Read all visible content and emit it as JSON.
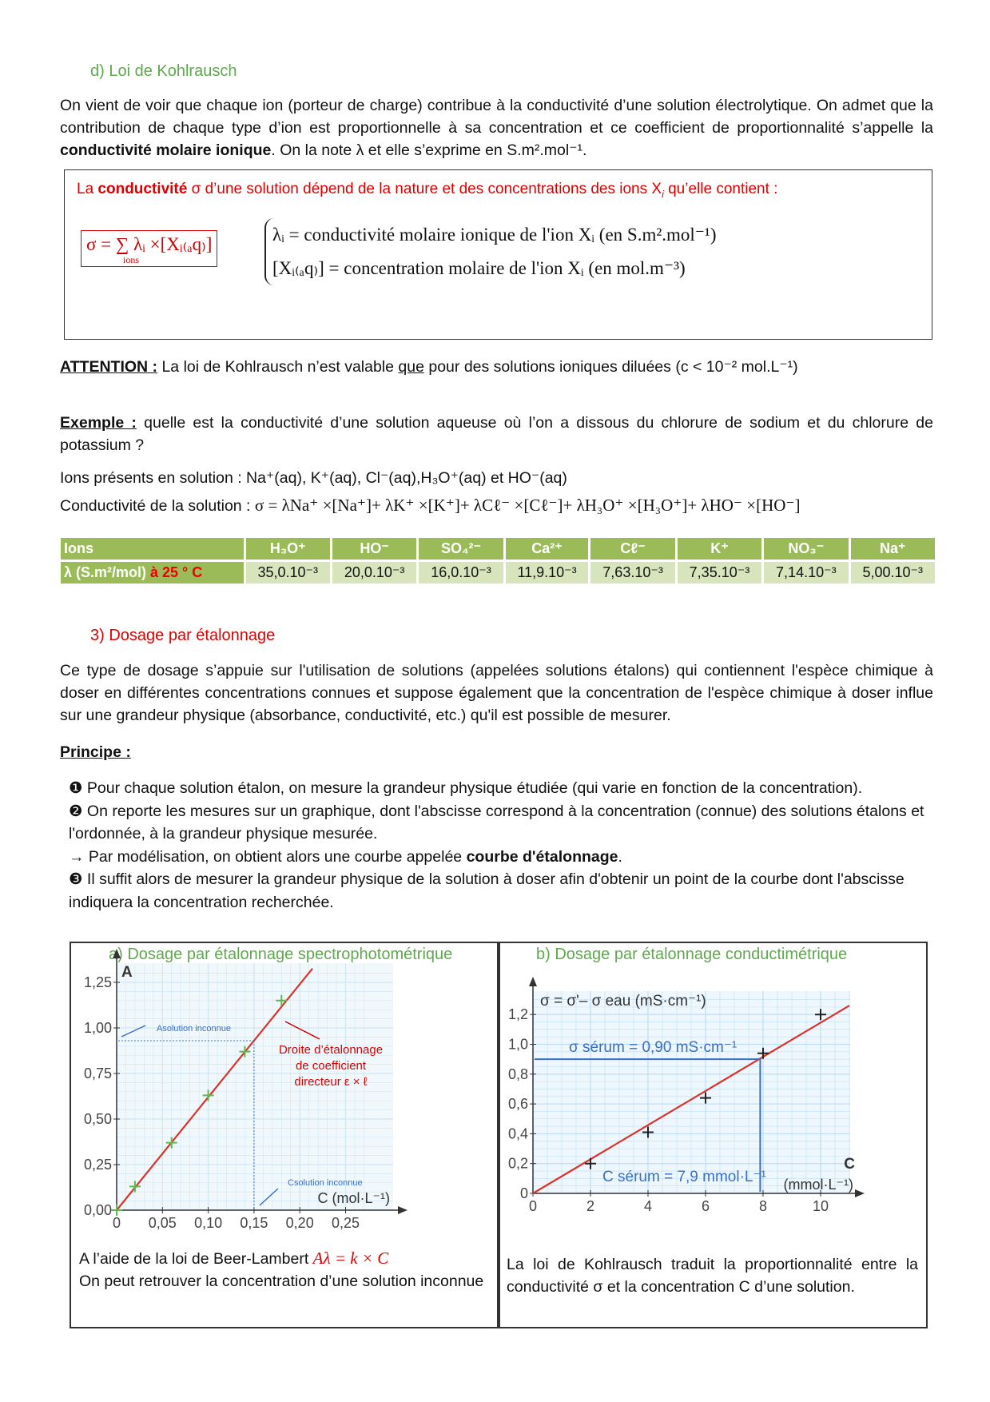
{
  "section_d": {
    "title": "d)   Loi de Kohlrausch",
    "intro_1": "On vient de voir que chaque ion (porteur de charge) contribue à la conductivité d’une solution électrolytique. On admet que la contribution de chaque type d’ion est proportionnelle à sa concentration et ce coefficient de proportionnalité s’appelle la ",
    "intro_bold": "conductivité molaire ionique",
    "intro_2": ". On la note λ et elle s’exprime en S.m².mol⁻¹."
  },
  "law_box": {
    "text_1": "La ",
    "text_bold": "conductivité",
    "text_2": " σ d’une solution dépend de la nature et des concentrations des ions X",
    "text_i": "i",
    "text_3": " qu’elle contient :",
    "formula": "σ = ∑ λᵢ ×[Xᵢ₍ₐq₎]",
    "formula_sub": "ions",
    "def_1": "λᵢ = conductivité molaire ionique de l'ion Xᵢ  (en S.m².mol⁻¹)",
    "def_2": "[Xᵢ₍ₐq₎] = concentration molaire de l'ion Xᵢ  (en mol.m⁻³)"
  },
  "attention": {
    "label": "ATTENTION :",
    "text_1": " La loi de Kohlrausch n’est valable ",
    "text_que": "que",
    "text_2": " pour des solutions ioniques diluées (c < 10⁻² mol.L⁻¹)"
  },
  "exemple": {
    "label": "Exemple :",
    "text": " quelle est la conductivité d’une solution aqueuse où l’on a dissous du chlorure de sodium et du chlorure de potassium ?",
    "ions": "Ions présents en solution : Na⁺(aq), K⁺(aq), Cl⁻(aq),H₃O⁺(aq) et HO⁻(aq)",
    "conductivity_label": "Conductivité de la solution : ",
    "conductivity_formula": "σ = λNa⁺ ×[Na⁺]+ λK⁺ ×[K⁺]+ λCℓ⁻ ×[Cℓ⁻]+ λH₃O⁺ ×[H₃O⁺]+ λHO⁻ ×[HO⁻]"
  },
  "ion_table": {
    "header": [
      "Ions",
      "H₃O⁺",
      "HO⁻",
      "SO₄²⁻",
      "Ca²⁺",
      "Cℓ⁻",
      "K⁺",
      "NO₃⁻",
      "Na⁺"
    ],
    "row_label": "λ (S.m²/mol) ",
    "row_label_red": "à 25 ° C",
    "values": [
      "35,0.10⁻³",
      "20,0.10⁻³",
      "16,0.10⁻³",
      "11,9.10⁻³",
      "7,63.10⁻³",
      "7,35.10⁻³",
      "7,14.10⁻³",
      "5,00.10⁻³"
    ],
    "colors": {
      "header": "#9bbb59",
      "row": "#d7e4bc"
    }
  },
  "section_3": {
    "title": "3)   Dosage par étalonnage",
    "intro": "Ce type de dosage s’appuie sur l'utilisation de solutions (appelées solutions étalons) qui contiennent l'espèce chimique à doser en différentes concentrations connues et suppose également que la concentration de l'espèce chimique à doser influe sur une grandeur physique (absorbance, conductivité, etc.) qu'il est possible de mesurer.",
    "principe_label": "Principe :",
    "step_1": "❶ Pour chaque solution étalon, on mesure la grandeur physique étudiée (qui varie en fonction de la concentration).",
    "step_2": "❷ On reporte les mesures sur un graphique, dont l'abscisse correspond à la concentration (connue) des solutions étalons et l'ordonnée, à la grandeur physique mesurée.",
    "arrow_1": "→ Par modélisation, on obtient alors une courbe appelée ",
    "arrow_bold": "courbe d'étalonnage",
    "arrow_2": ".",
    "step_3": "❸ Il suffit alors de mesurer la grandeur physique de la solution à doser afin d'obtenir un point de la courbe dont l'abscisse indiquera la concentration recherchée."
  },
  "panel_a": {
    "title": "a)   Dosage par étalonnage spectrophotométrique",
    "caption_1": "A l’aide de la loi de Beer-Lambert ",
    "caption_formula": "Aλ =  k × C",
    "caption_2": "On peut retrouver la concentration d’une solution inconnue"
  },
  "panel_b": {
    "title": "b)   Dosage par étalonnage conductimétrique",
    "caption": "La loi de Kohlrausch traduit la proportionnalité entre la conductivité σ et la concentration C d’une solution."
  },
  "chart_data": [
    {
      "type": "scatter",
      "ylabel": "A",
      "xlabel": "C (mol·L⁻¹)",
      "x_ticks": [
        "0",
        "0,05",
        "0,10",
        "0,15",
        "0,20",
        "0,25"
      ],
      "y_ticks": [
        "0,00",
        "0,25",
        "0,50",
        "0,75",
        "1,00",
        "1,25"
      ],
      "xlim": [
        0,
        0.27
      ],
      "ylim": [
        0,
        1.3
      ],
      "grid": true,
      "points": [
        [
          0,
          0
        ],
        [
          0.02,
          0.13
        ],
        [
          0.06,
          0.37
        ],
        [
          0.1,
          0.63
        ],
        [
          0.14,
          0.87
        ],
        [
          0.18,
          1.15
        ]
      ],
      "fit_slope": 6.2,
      "annotations": {
        "a_unknown": "Asolution inconnue",
        "c_unknown": "Csolution inconnue",
        "line_label": [
          "Droite d’étalonnage",
          "de coefficient",
          "directeur ε × ℓ"
        ]
      },
      "reading": {
        "x": 0.15,
        "y": 0.93
      },
      "colors": {
        "line": "#d9342b",
        "points": "#5fb84f",
        "reading": "#3a6fc4",
        "grid": "#cfe6f3"
      }
    },
    {
      "type": "scatter",
      "ylabel": "σ = σ'– σ eau (mS·cm⁻¹)",
      "xlabel_1": "C",
      "xlabel_2": "(mmol·L⁻¹)",
      "x_ticks": [
        "0",
        "2",
        "4",
        "6",
        "8",
        "10"
      ],
      "y_ticks": [
        "0",
        "0,2",
        "0,4",
        "0,6",
        "0,8",
        "1,0",
        "1,2"
      ],
      "xlim": [
        0,
        11
      ],
      "ylim": [
        0,
        1.3
      ],
      "grid": true,
      "points": [
        [
          2,
          0.2
        ],
        [
          4,
          0.41
        ],
        [
          6,
          0.64
        ],
        [
          8,
          0.94
        ],
        [
          10,
          1.2
        ]
      ],
      "fit_slope": 0.1145,
      "annotations": {
        "sigma": "σ sérum = 0,90 mS·cm⁻¹",
        "c": "C sérum = 7,9 mmol·L⁻¹"
      },
      "reading": {
        "x": 7.9,
        "y": 0.9
      },
      "colors": {
        "line": "#d9342b",
        "points": "#222222",
        "reading": "#3a6fc4",
        "grid": "#bfe0f5"
      }
    }
  ]
}
